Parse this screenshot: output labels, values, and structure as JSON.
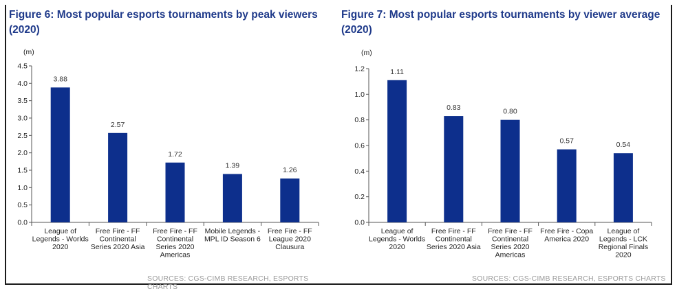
{
  "chart_data": [
    {
      "type": "bar",
      "title": "Figure 6: Most popular esports tournaments by peak viewers (2020)",
      "unit": "(m)",
      "ylim": [
        0,
        4.5
      ],
      "yticks": [
        "0.0",
        "0.5",
        "1.0",
        "1.5",
        "2.0",
        "2.5",
        "3.0",
        "3.5",
        "4.0",
        "4.5"
      ],
      "categories": [
        [
          "League of",
          "Legends - Worlds",
          "2020"
        ],
        [
          "Free Fire - FF",
          "Continental",
          "Series 2020 Asia"
        ],
        [
          "Free Fire - FF",
          "Continental",
          "Series 2020",
          "Americas"
        ],
        [
          "Mobile Legends -",
          "MPL ID Season 6"
        ],
        [
          "Free Fire - FF",
          "League 2020",
          "Clausura"
        ]
      ],
      "values": [
        3.88,
        2.57,
        1.72,
        1.39,
        1.26
      ],
      "value_labels": [
        "3.88",
        "2.57",
        "1.72",
        "1.39",
        "1.26"
      ],
      "bar_color": "#0d2f8c",
      "source": "SOURCES: CGS-CIMB RESEARCH, ESPORTS CHARTS"
    },
    {
      "type": "bar",
      "title": "Figure 7: Most popular esports tournaments by viewer average (2020)",
      "unit": "(m)",
      "ylim": [
        0,
        1.2
      ],
      "yticks": [
        "0.0",
        "0.2",
        "0.4",
        "0.6",
        "0.8",
        "1.0",
        "1.2"
      ],
      "categories": [
        [
          "League of",
          "Legends - Worlds",
          "2020"
        ],
        [
          "Free Fire - FF",
          "Continental",
          "Series 2020 Asia"
        ],
        [
          "Free Fire - FF",
          "Continental",
          "Series 2020",
          "Americas"
        ],
        [
          "Free Fire - Copa",
          "America 2020"
        ],
        [
          "League of",
          "Legends - LCK",
          "Regional Finals",
          "2020"
        ]
      ],
      "values": [
        1.11,
        0.83,
        0.8,
        0.57,
        0.54
      ],
      "value_labels": [
        "1.11",
        "0.83",
        "0.80",
        "0.57",
        "0.54"
      ],
      "bar_color": "#0d2f8c",
      "source": "SOURCES: CGS-CIMB RESEARCH, ESPORTS CHARTS"
    }
  ]
}
